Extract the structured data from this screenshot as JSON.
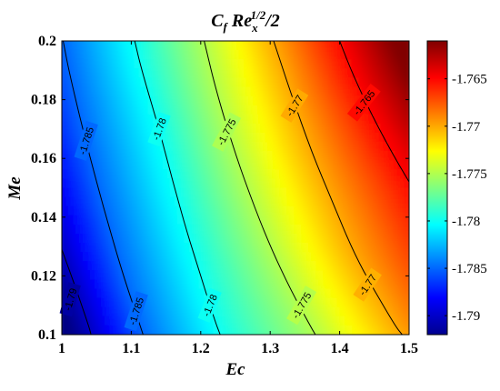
{
  "chart_data": {
    "type": "heatmap",
    "subtype": "filled-contour",
    "title": {
      "base": "C",
      "base_sub": "f",
      "mid": " Re",
      "mid_sup": "1/2",
      "mid_sub": "x",
      "tail": "/2"
    },
    "xlabel": "Ec",
    "ylabel": "Me",
    "xlim": [
      1,
      1.5
    ],
    "ylim": [
      0.1,
      0.2
    ],
    "x_ticks": [
      "1",
      "1.1",
      "1.2",
      "1.3",
      "1.4",
      "1.5"
    ],
    "y_ticks": [
      "0.1",
      "0.12",
      "0.14",
      "0.16",
      "0.18",
      "0.2"
    ],
    "colormap": "jet",
    "colorbar": {
      "range": [
        -1.792,
        -1.761
      ],
      "ticks": [
        "-1.79",
        "-1.785",
        "-1.78",
        "-1.775",
        "-1.77",
        "-1.765"
      ]
    },
    "contours": [
      {
        "level": -1.79,
        "label": "-1.79",
        "points": [
          [
            1.0,
            0.129
          ],
          [
            1.02,
            0.116
          ],
          [
            1.04,
            0.102
          ],
          [
            1.042,
            0.1
          ]
        ]
      },
      {
        "level": -1.785,
        "label": "-1.785",
        "points": [
          [
            1.002,
            0.2
          ],
          [
            1.01,
            0.19
          ],
          [
            1.03,
            0.17
          ],
          [
            1.05,
            0.152
          ],
          [
            1.07,
            0.135
          ],
          [
            1.09,
            0.119
          ],
          [
            1.11,
            0.105
          ],
          [
            1.117,
            0.1
          ]
        ]
      },
      {
        "level": -1.78,
        "label": "-1.78",
        "points": [
          [
            1.105,
            0.2
          ],
          [
            1.115,
            0.19
          ],
          [
            1.14,
            0.17
          ],
          [
            1.16,
            0.152
          ],
          [
            1.18,
            0.135
          ],
          [
            1.2,
            0.12
          ],
          [
            1.22,
            0.105
          ],
          [
            1.228,
            0.1
          ]
        ]
      },
      {
        "level": -1.775,
        "label": "-1.775",
        "points": [
          [
            1.205,
            0.2
          ],
          [
            1.22,
            0.185
          ],
          [
            1.245,
            0.165
          ],
          [
            1.27,
            0.148
          ],
          [
            1.3,
            0.13
          ],
          [
            1.33,
            0.115
          ],
          [
            1.36,
            0.102
          ],
          [
            1.365,
            0.1
          ]
        ]
      },
      {
        "level": -1.77,
        "label": "-1.77",
        "points": [
          [
            1.305,
            0.2
          ],
          [
            1.33,
            0.182
          ],
          [
            1.36,
            0.162
          ],
          [
            1.39,
            0.145
          ],
          [
            1.42,
            0.128
          ],
          [
            1.45,
            0.115
          ],
          [
            1.48,
            0.103
          ],
          [
            1.49,
            0.1
          ]
        ]
      },
      {
        "level": -1.765,
        "label": "-1.765",
        "points": [
          [
            1.4,
            0.2
          ],
          [
            1.42,
            0.188
          ],
          [
            1.45,
            0.173
          ],
          [
            1.48,
            0.16
          ],
          [
            1.5,
            0.152
          ]
        ]
      }
    ],
    "labels": [
      {
        "text": "-1.79",
        "x": 1.012,
        "y": 0.112,
        "angle": -74
      },
      {
        "text": "-1.785",
        "x": 1.035,
        "y": 0.166,
        "angle": -72
      },
      {
        "text": "-1.785",
        "x": 1.107,
        "y": 0.108,
        "angle": -72
      },
      {
        "text": "-1.78",
        "x": 1.14,
        "y": 0.17,
        "angle": -70
      },
      {
        "text": "-1.78",
        "x": 1.213,
        "y": 0.11,
        "angle": -68
      },
      {
        "text": "-1.775",
        "x": 1.237,
        "y": 0.169,
        "angle": -62
      },
      {
        "text": "-1.775",
        "x": 1.345,
        "y": 0.11,
        "angle": -60
      },
      {
        "text": "-1.77",
        "x": 1.335,
        "y": 0.178,
        "angle": -58
      },
      {
        "text": "-1.77",
        "x": 1.44,
        "y": 0.117,
        "angle": -56
      },
      {
        "text": "-1.765",
        "x": 1.435,
        "y": 0.179,
        "angle": -52
      }
    ]
  }
}
